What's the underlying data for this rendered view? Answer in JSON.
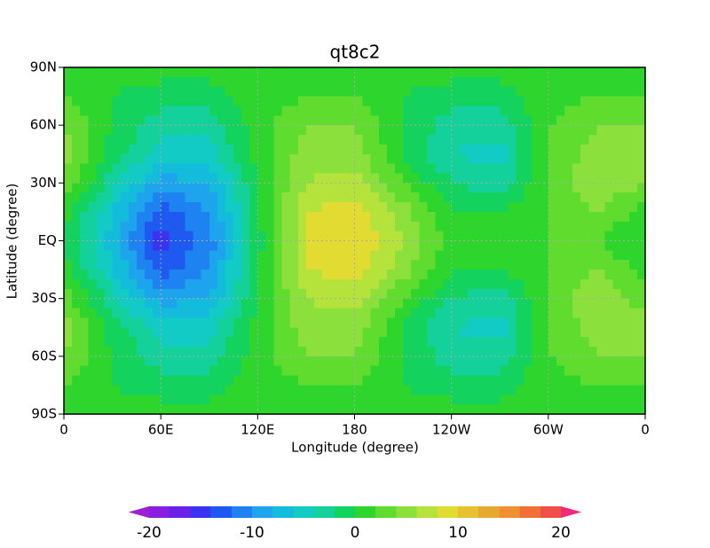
{
  "chart_data": {
    "type": "contour",
    "title": "qt8c2",
    "xlabel": "Longitude (degree)",
    "ylabel": "Latitude (degree)",
    "xlim": [
      0,
      360
    ],
    "ylim": [
      -90,
      90
    ],
    "xticks": [
      0,
      {
        "value": 60,
        "label": "60E"
      },
      {
        "value": 120,
        "label": "120E"
      },
      180,
      {
        "value": 240,
        "label": "120W"
      },
      {
        "value": 300,
        "label": "60W"
      },
      {
        "value": 360,
        "label": "0"
      }
    ],
    "yticks": [
      {
        "value": -90,
        "label": "90S"
      },
      {
        "value": -60,
        "label": "60S"
      },
      {
        "value": -30,
        "label": "30S"
      },
      {
        "value": 0,
        "label": "EQ"
      },
      {
        "value": 30,
        "label": "30N"
      },
      {
        "value": 60,
        "label": "60N"
      },
      {
        "value": 90,
        "label": "90N"
      }
    ],
    "grid": true,
    "x": [
      0,
      30,
      60,
      90,
      120,
      150,
      180,
      210,
      240,
      270,
      300,
      330,
      360
    ],
    "y": [
      90,
      75,
      60,
      45,
      30,
      15,
      0,
      -15,
      -30,
      -45,
      -60,
      -75,
      -90
    ],
    "values": [
      [
        1,
        1,
        1,
        1,
        1,
        1,
        1,
        1,
        1,
        1,
        1,
        1,
        1
      ],
      [
        2,
        0,
        -1,
        -1,
        1,
        2,
        2,
        0,
        -1,
        -1,
        1,
        2,
        2
      ],
      [
        4,
        0,
        -3,
        -3,
        1,
        4,
        4,
        0,
        -3,
        -3,
        2,
        4,
        4
      ],
      [
        5,
        -1,
        -5,
        -5,
        1,
        5,
        5,
        0,
        -4,
        -5,
        2,
        5,
        5
      ],
      [
        4,
        -3,
        -9,
        -8,
        0,
        6,
        7,
        2,
        -2,
        -3,
        2,
        6,
        4
      ],
      [
        1,
        -6,
        -13,
        -10,
        0,
        8,
        9,
        5,
        0,
        0,
        2,
        4,
        1
      ],
      [
        0,
        -7,
        -15,
        -11,
        -1,
        8,
        10,
        6,
        1,
        1,
        2,
        2,
        0
      ],
      [
        1,
        -6,
        -13,
        -10,
        0,
        8,
        9,
        5,
        0,
        0,
        2,
        4,
        1
      ],
      [
        3,
        -3,
        -9,
        -8,
        0,
        6,
        7,
        2,
        -2,
        -3,
        2,
        6,
        3
      ],
      [
        5,
        -1,
        -5,
        -5,
        1,
        5,
        5,
        0,
        -4,
        -5,
        2,
        5,
        5
      ],
      [
        4,
        0,
        -3,
        -3,
        1,
        4,
        4,
        0,
        -3,
        -3,
        2,
        4,
        4
      ],
      [
        2,
        0,
        -1,
        -1,
        1,
        2,
        2,
        0,
        -1,
        -1,
        1,
        2,
        2
      ],
      [
        1,
        1,
        1,
        1,
        1,
        1,
        1,
        1,
        1,
        1,
        1,
        1,
        1
      ]
    ],
    "levels": [
      -20,
      -18,
      -16,
      -14,
      -12,
      -10,
      -8,
      -6,
      -4,
      -2,
      0,
      2,
      4,
      6,
      8,
      10,
      12,
      14,
      16,
      18,
      20
    ],
    "colors": [
      "#a01ed2",
      "#8a1ee0",
      "#6a22e8",
      "#3a34f0",
      "#1e5af0",
      "#1e82f0",
      "#1ea4ec",
      "#14bcdc",
      "#12cbc4",
      "#14d09a",
      "#14d25e",
      "#2dd52d",
      "#5fdc2e",
      "#8ce03c",
      "#b6e23c",
      "#e2dc32",
      "#e6c232",
      "#e6aa32",
      "#f09030",
      "#f07036",
      "#f04e46",
      "#f02878"
    ],
    "colorbar_ticks": [
      -20,
      -10,
      0,
      10,
      20
    ]
  }
}
